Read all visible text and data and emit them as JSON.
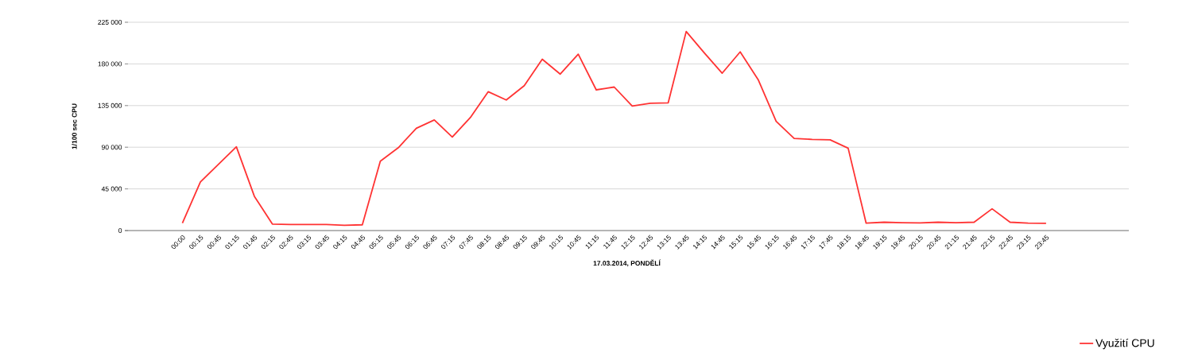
{
  "chart_data": {
    "type": "line",
    "xlabel": "17.03.2014, PONDĚLÍ",
    "ylabel": "1/100 sec CPU",
    "categories": [
      "00:00",
      "00:15",
      "00:45",
      "01:15",
      "01:45",
      "02:15",
      "02:45",
      "03:15",
      "03:45",
      "04:15",
      "04:45",
      "05:15",
      "05:45",
      "06:15",
      "06:45",
      "07:15",
      "07:45",
      "08:15",
      "08:45",
      "09:15",
      "09:45",
      "10:15",
      "10:45",
      "11:15",
      "11:45",
      "12:15",
      "12:45",
      "13:15",
      "13:45",
      "14:15",
      "14:45",
      "15:15",
      "15:45",
      "16:15",
      "16:45",
      "17:15",
      "17:45",
      "18:15",
      "18:45",
      "19:15",
      "19:45",
      "20:15",
      "20:45",
      "21:15",
      "21:45",
      "22:15",
      "22:45",
      "23:15",
      "23:45"
    ],
    "series": [
      {
        "name": "Využití CPU",
        "color": "#ff3333",
        "values": [
          8000,
          52500,
          71500,
          90500,
          37000,
          7000,
          6600,
          6500,
          6500,
          5600,
          6200,
          75000,
          89500,
          110500,
          119500,
          101000,
          122000,
          150000,
          141000,
          156500,
          185000,
          169000,
          190500,
          152000,
          155000,
          134500,
          137500,
          138000,
          215000,
          192000,
          170000,
          193000,
          163000,
          118000,
          99500,
          98500,
          98000,
          89000,
          8000,
          9000,
          8500,
          8200,
          9000,
          8500,
          9000,
          23500,
          9000,
          8000,
          7800
        ]
      }
    ],
    "ylim": [
      0,
      225000
    ],
    "yticks": [
      {
        "value": 0,
        "label": "0"
      },
      {
        "value": 45000,
        "label": "45 000"
      },
      {
        "value": 90000,
        "label": "90 000"
      },
      {
        "value": 135000,
        "label": "135 000"
      },
      {
        "value": 180000,
        "label": "180 000"
      },
      {
        "value": 225000,
        "label": "225 000"
      }
    ],
    "grid": "y",
    "legend": "bottom right",
    "marker": "none",
    "line_style": "solid"
  }
}
